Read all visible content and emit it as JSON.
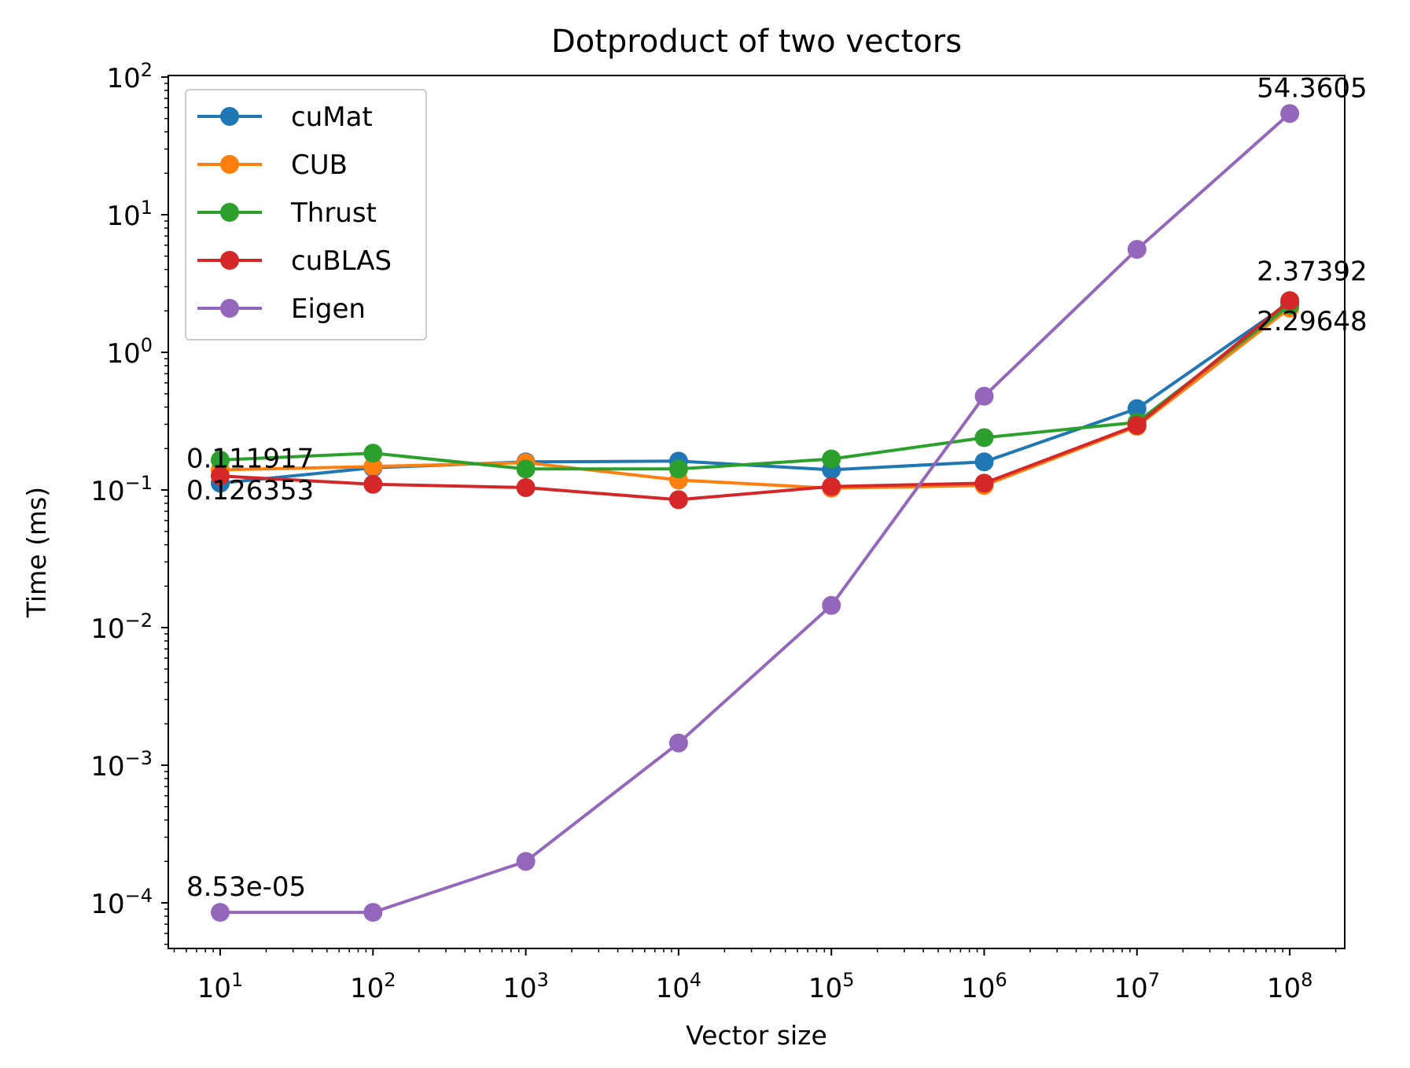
{
  "chart_data": {
    "type": "line",
    "title": "Dotproduct of two vectors",
    "xlabel": "Vector size",
    "ylabel": "Time (ms)",
    "xscale": "log",
    "yscale": "log",
    "xlim": [
      5,
      200000000
    ],
    "ylim": [
      5e-05,
      120
    ],
    "x": [
      10,
      100,
      1000,
      10000,
      100000,
      1000000,
      10000000,
      100000000
    ],
    "x_ticks": [
      {
        "base": "10",
        "exp": "1"
      },
      {
        "base": "10",
        "exp": "2"
      },
      {
        "base": "10",
        "exp": "3"
      },
      {
        "base": "10",
        "exp": "4"
      },
      {
        "base": "10",
        "exp": "5"
      },
      {
        "base": "10",
        "exp": "6"
      },
      {
        "base": "10",
        "exp": "7"
      },
      {
        "base": "10",
        "exp": "8"
      }
    ],
    "y_ticks": [
      {
        "base": "10",
        "exp": "−4"
      },
      {
        "base": "10",
        "exp": "−3"
      },
      {
        "base": "10",
        "exp": "−2"
      },
      {
        "base": "10",
        "exp": "−1"
      },
      {
        "base": "10",
        "exp": "0"
      },
      {
        "base": "10",
        "exp": "1"
      },
      {
        "base": "10",
        "exp": "2"
      }
    ],
    "legend_position": "upper-left",
    "grid": false,
    "series": [
      {
        "name": "cuMat",
        "color": "#1f77b4",
        "values": [
          0.111917,
          0.145,
          0.16,
          0.162,
          0.14,
          0.16,
          0.39,
          2.29648
        ]
      },
      {
        "name": "CUB",
        "color": "#ff7f0e",
        "values": [
          0.14,
          0.148,
          0.158,
          0.118,
          0.103,
          0.108,
          0.29,
          2.1
        ]
      },
      {
        "name": "Thrust",
        "color": "#2ca02c",
        "values": [
          0.165,
          0.185,
          0.142,
          0.142,
          0.168,
          0.24,
          0.31,
          2.2
        ]
      },
      {
        "name": "cuBLAS",
        "color": "#d62728",
        "values": [
          0.126353,
          0.11,
          0.104,
          0.085,
          0.106,
          0.112,
          0.295,
          2.37392
        ]
      },
      {
        "name": "Eigen",
        "color": "#9467bd",
        "values": [
          8.53e-05,
          8.53e-05,
          0.0002,
          0.00145,
          0.0145,
          0.48,
          5.6,
          54.3605
        ]
      }
    ],
    "annotations": [
      {
        "text": "0.111917",
        "x": 10,
        "y": 0.111917
      },
      {
        "text": "0.126353",
        "x": 10,
        "y": 0.126353
      },
      {
        "text": "8.53e-05",
        "x": 10,
        "y": 8.53e-05
      },
      {
        "text": "54.3605",
        "x": 100000000,
        "y": 54.3605
      },
      {
        "text": "2.37392",
        "x": 100000000,
        "y": 2.37392
      },
      {
        "text": "2.29648",
        "x": 100000000,
        "y": 2.29648
      }
    ]
  }
}
